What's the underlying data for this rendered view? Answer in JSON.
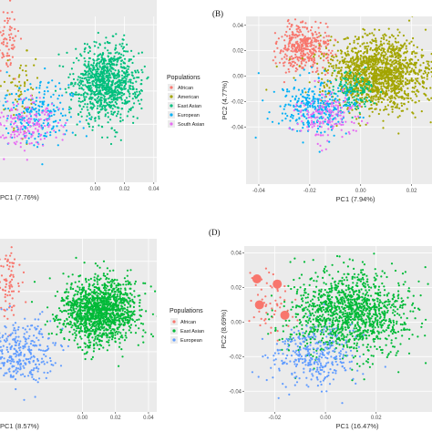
{
  "chart_data": [
    {
      "panel": "A",
      "type": "scatter",
      "title": "",
      "xlabel": "PC1 (7.76%)",
      "ylabel": "",
      "xlim": [
        -0.065,
        0.042
      ],
      "ylim": [
        -0.055,
        0.045
      ],
      "xticks": [
        {
          "value": 0.0,
          "label": "0.00"
        },
        {
          "value": 0.02,
          "label": "0.02"
        },
        {
          "value": 0.04,
          "label": "0.04"
        }
      ],
      "yticks": [],
      "grid": true,
      "legend": {
        "title": "Populations",
        "placement": "right",
        "entries": [
          "African",
          "American",
          "East Asian",
          "European",
          "South Asian"
        ]
      },
      "series": [
        {
          "name": "African",
          "color": "#F8766D",
          "clusters": [
            {
              "cx": -0.06,
              "cy": 0.03,
              "sx": 0.004,
              "sy": 0.01,
              "n": 70
            }
          ]
        },
        {
          "name": "American",
          "color": "#A3A500",
          "clusters": [
            {
              "cx": -0.05,
              "cy": 0.0,
              "sx": 0.006,
              "sy": 0.012,
              "n": 60
            }
          ]
        },
        {
          "name": "East Asian",
          "color": "#00BF7D",
          "clusters": [
            {
              "cx": 0.008,
              "cy": 0.005,
              "sx": 0.011,
              "sy": 0.011,
              "n": 950
            }
          ]
        },
        {
          "name": "European",
          "color": "#00B0F6",
          "clusters": [
            {
              "cx": -0.04,
              "cy": -0.012,
              "sx": 0.014,
              "sy": 0.01,
              "n": 220
            }
          ]
        },
        {
          "name": "South Asian",
          "color": "#E76BF3",
          "clusters": [
            {
              "cx": -0.045,
              "cy": -0.02,
              "sx": 0.012,
              "sy": 0.008,
              "n": 170
            }
          ]
        }
      ]
    },
    {
      "panel": "B",
      "type": "scatter",
      "title": "",
      "xlabel": "PC1 (7.94%)",
      "ylabel": "PC2 (4.77%)",
      "xlim": [
        -0.045,
        0.028
      ],
      "ylim": [
        -0.085,
        0.047
      ],
      "xticks": [
        {
          "value": -0.04,
          "label": "-0.04"
        },
        {
          "value": -0.02,
          "label": "-0.02"
        },
        {
          "value": 0.0,
          "label": "0.00"
        },
        {
          "value": 0.02,
          "label": "0.02"
        }
      ],
      "yticks": [
        {
          "value": 0.04,
          "label": "0.04"
        },
        {
          "value": 0.02,
          "label": "0.02"
        },
        {
          "value": 0.0,
          "label": "0.00"
        },
        {
          "value": -0.02,
          "label": "-0.02"
        },
        {
          "value": -0.04,
          "label": "-0.04"
        }
      ],
      "grid": true,
      "legend": null,
      "series": [
        {
          "name": "African",
          "color": "#F8766D",
          "clusters": [
            {
              "cx": -0.022,
              "cy": 0.022,
              "sx": 0.005,
              "sy": 0.01,
              "n": 380
            }
          ]
        },
        {
          "name": "American",
          "color": "#A3A500",
          "clusters": [
            {
              "cx": 0.007,
              "cy": 0.002,
              "sx": 0.01,
              "sy": 0.014,
              "n": 1500
            }
          ]
        },
        {
          "name": "East Asian",
          "color": "#00BF7D",
          "clusters": [
            {
              "cx": -0.003,
              "cy": -0.012,
              "sx": 0.004,
              "sy": 0.008,
              "n": 120
            }
          ]
        },
        {
          "name": "European",
          "color": "#00B0F6",
          "clusters": [
            {
              "cx": -0.018,
              "cy": -0.025,
              "sx": 0.008,
              "sy": 0.011,
              "n": 320
            }
          ]
        },
        {
          "name": "South Asian",
          "color": "#E76BF3",
          "clusters": [
            {
              "cx": -0.013,
              "cy": -0.032,
              "sx": 0.006,
              "sy": 0.009,
              "n": 160
            }
          ]
        }
      ]
    },
    {
      "panel": "C",
      "type": "scatter",
      "title": "",
      "xlabel": "PC1 (8.57%)",
      "ylabel": "",
      "xlim": [
        -0.05,
        0.045
      ],
      "ylim": [
        -0.06,
        0.055
      ],
      "xticks": [
        {
          "value": 0.0,
          "label": "0.00"
        },
        {
          "value": 0.02,
          "label": "0.02"
        },
        {
          "value": 0.04,
          "label": "0.04"
        }
      ],
      "yticks": [],
      "grid": true,
      "legend": {
        "title": "Populations",
        "placement": "right",
        "entries": [
          "African",
          "East Asian",
          "European"
        ]
      },
      "series": [
        {
          "name": "African",
          "color": "#F8766D",
          "clusters": [
            {
              "cx": -0.046,
              "cy": 0.025,
              "sx": 0.004,
              "sy": 0.012,
              "n": 90
            }
          ]
        },
        {
          "name": "East Asian",
          "color": "#00BA38",
          "clusters": [
            {
              "cx": 0.01,
              "cy": 0.007,
              "sx": 0.012,
              "sy": 0.011,
              "n": 1400
            }
          ]
        },
        {
          "name": "European",
          "color": "#619CFF",
          "clusters": [
            {
              "cx": -0.038,
              "cy": -0.02,
              "sx": 0.01,
              "sy": 0.011,
              "n": 320
            }
          ]
        }
      ]
    },
    {
      "panel": "D",
      "type": "scatter",
      "title": "",
      "xlabel": "PC1 (16.47%)",
      "ylabel": "PC2 (8.69%)",
      "xlim": [
        -0.032,
        0.042
      ],
      "ylim": [
        -0.052,
        0.044
      ],
      "xticks": [
        {
          "value": -0.02,
          "label": "-0.02"
        },
        {
          "value": 0.0,
          "label": "0.00"
        },
        {
          "value": 0.02,
          "label": "0.02"
        }
      ],
      "yticks": [
        {
          "value": 0.04,
          "label": "0.04"
        },
        {
          "value": 0.02,
          "label": "0.02"
        },
        {
          "value": 0.0,
          "label": "0.00"
        },
        {
          "value": -0.02,
          "label": "-0.02"
        },
        {
          "value": -0.04,
          "label": "-0.04"
        }
      ],
      "grid": true,
      "legend": null,
      "series": [
        {
          "name": "African",
          "color": "#F8766D",
          "clusters": [
            {
              "cx": -0.022,
              "cy": 0.01,
              "sx": 0.005,
              "sy": 0.01,
              "n": 60
            }
          ]
        },
        {
          "name": "East Asian",
          "color": "#00BA38",
          "clusters": [
            {
              "cx": 0.01,
              "cy": 0.005,
              "sx": 0.012,
              "sy": 0.012,
              "n": 1300
            }
          ]
        },
        {
          "name": "European",
          "color": "#619CFF",
          "clusters": [
            {
              "cx": -0.005,
              "cy": -0.02,
              "sx": 0.009,
              "sy": 0.009,
              "n": 330
            }
          ]
        }
      ],
      "highlighted_points": [
        {
          "x": -0.027,
          "y": 0.025
        },
        {
          "x": -0.019,
          "y": 0.022
        },
        {
          "x": -0.016,
          "y": 0.004
        },
        {
          "x": -0.026,
          "y": 0.01
        }
      ]
    }
  ],
  "panel_labels": {
    "B": "(B)",
    "D": "(D)"
  },
  "colors": {
    "panel_background": "#ebebeb",
    "grid": "#ffffff"
  }
}
